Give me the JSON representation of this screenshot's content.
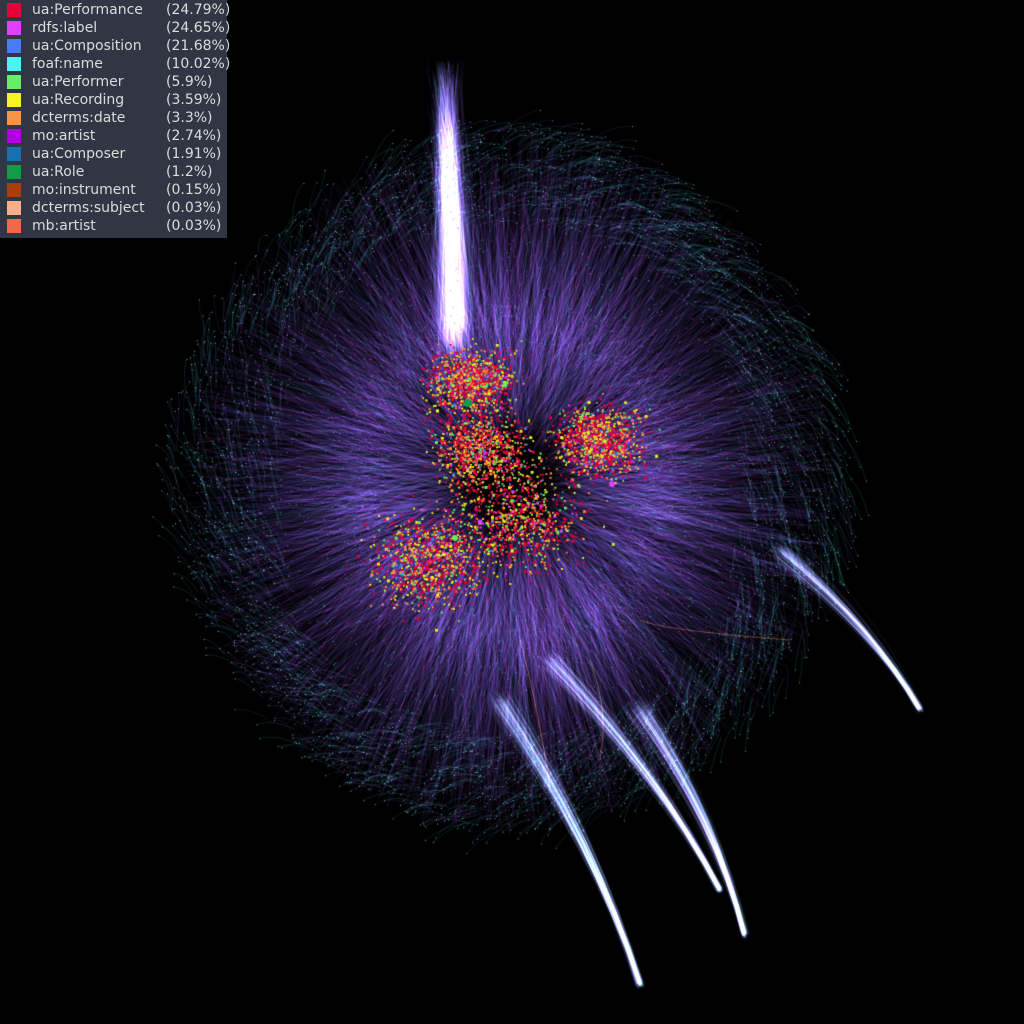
{
  "graph": {
    "background": "#000000",
    "legend": {
      "background": "#343a48",
      "text_color": "#dcdcdc",
      "items": [
        {
          "label": "ua:Performance",
          "pct": "(24.79%)",
          "share": 24.79,
          "color": "#e6003c"
        },
        {
          "label": "rdfs:label",
          "pct": "(24.65%)",
          "share": 24.65,
          "color": "#e040fb"
        },
        {
          "label": "ua:Composition",
          "pct": "(21.68%)",
          "share": 21.68,
          "color": "#4a7cf0"
        },
        {
          "label": "foaf:name",
          "pct": "(10.02%)",
          "share": 10.02,
          "color": "#4df2f2"
        },
        {
          "label": "ua:Performer",
          "pct": "(5.9%)",
          "share": 5.9,
          "color": "#66ee66"
        },
        {
          "label": "ua:Recording",
          "pct": "(3.59%)",
          "share": 3.59,
          "color": "#f5f523"
        },
        {
          "label": "dcterms:date",
          "pct": "(3.3%)",
          "share": 3.3,
          "color": "#f7944a"
        },
        {
          "label": "mo:artist",
          "pct": "(2.74%)",
          "share": 2.74,
          "color": "#b000e0"
        },
        {
          "label": "ua:Composer",
          "pct": "(1.91%)",
          "share": 1.91,
          "color": "#1a6fb0"
        },
        {
          "label": "ua:Role",
          "pct": "(1.2%)",
          "share": 1.2,
          "color": "#159a4a"
        },
        {
          "label": "mo:instrument",
          "pct": "(0.15%)",
          "share": 0.15,
          "color": "#a5400a"
        },
        {
          "label": "dcterms:subject",
          "pct": "(0.03%)",
          "share": 0.03,
          "color": "#f5b08a"
        },
        {
          "label": "mb:artist",
          "pct": "(0.03%)",
          "share": 0.03,
          "color": "#f06a4a"
        }
      ]
    }
  }
}
